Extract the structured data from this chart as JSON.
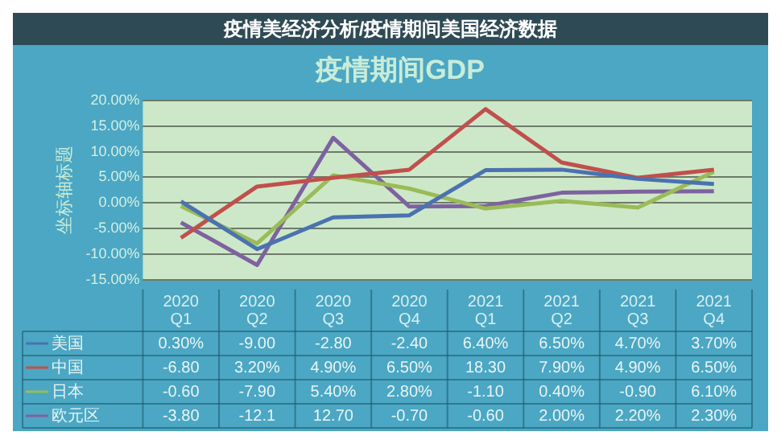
{
  "chart_data": {
    "type": "line",
    "title": "疫情期间GDP",
    "ylabel": "坐标轴标题",
    "annotations": [
      "疫情美经济分析/疫情期间美国经济数据"
    ],
    "categories": [
      "2020 Q1",
      "2020 Q2",
      "2020 Q3",
      "2020 Q4",
      "2021 Q1",
      "2021 Q2",
      "2021 Q3",
      "2021 Q4"
    ],
    "series": [
      {
        "name": "美国",
        "color": "#4a72b0",
        "values": [
          0.3,
          -9.0,
          -2.8,
          -2.4,
          6.4,
          6.5,
          4.7,
          3.7
        ],
        "value_labels": [
          "0.30%",
          "-9.00",
          "-2.80",
          "-2.40",
          "6.40%",
          "6.50%",
          "4.70%",
          "3.70%"
        ]
      },
      {
        "name": "中国",
        "color": "#c0504d",
        "values": [
          -6.8,
          3.2,
          4.9,
          6.5,
          18.3,
          7.9,
          4.9,
          6.5
        ],
        "value_labels": [
          "-6.80",
          "3.20%",
          "4.90%",
          "6.50%",
          "18.30",
          "7.90%",
          "4.90%",
          "6.50%"
        ]
      },
      {
        "name": "日本",
        "color": "#9bbb59",
        "values": [
          -0.6,
          -7.9,
          5.4,
          2.8,
          -1.1,
          0.4,
          -0.9,
          6.1
        ],
        "value_labels": [
          "-0.60",
          "-7.90",
          "5.40%",
          "2.80%",
          "-1.10",
          "0.40%",
          "-0.90",
          "6.10%"
        ]
      },
      {
        "name": "欧元区",
        "color": "#7e62a0",
        "values": [
          -3.8,
          -12.1,
          12.7,
          -0.7,
          -0.6,
          2.0,
          2.2,
          2.3
        ],
        "value_labels": [
          "-3.80",
          "-12.1",
          "12.70",
          "-0.70",
          "-0.60",
          "2.00%",
          "2.20%",
          "2.30%"
        ]
      }
    ],
    "ylim": [
      -15,
      20
    ],
    "yticks": [
      {
        "value": -15,
        "label": "-15.00%"
      },
      {
        "value": -10,
        "label": "-10.00%"
      },
      {
        "value": -5,
        "label": "-5.00%"
      },
      {
        "value": 0,
        "label": "0.00%"
      },
      {
        "value": 5,
        "label": "5.00%"
      },
      {
        "value": 10,
        "label": "10.00%"
      },
      {
        "value": 15,
        "label": "15.00%"
      },
      {
        "value": 20,
        "label": "20.00%"
      }
    ],
    "grid": "y",
    "legend": "bottom left",
    "marker": "none",
    "line_style": "solid"
  }
}
